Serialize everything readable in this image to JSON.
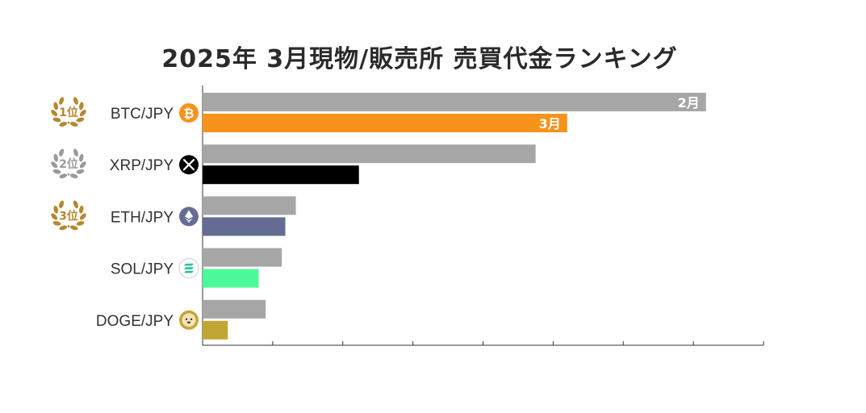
{
  "title": "2025年 3月現物/販売所 売買代金ランキング",
  "chart_data": {
    "type": "bar",
    "orientation": "horizontal",
    "title": "2025年 3月現物/販売所 売買代金ランキング",
    "categories": [
      "BTC/JPY",
      "XRP/JPY",
      "ETH/JPY",
      "SOL/JPY",
      "DOGE/JPY"
    ],
    "series": [
      {
        "name": "2月",
        "values": [
          7.18,
          4.75,
          1.33,
          1.13,
          0.9
        ]
      },
      {
        "name": "3月",
        "values": [
          5.2,
          2.23,
          1.18,
          0.8,
          0.36
        ]
      }
    ],
    "xlim": [
      0,
      8
    ],
    "xticks": 8,
    "ranks": [
      "1位",
      "2位",
      "3位"
    ],
    "rank_colors": [
      "#b8862f",
      "#9a9a9a",
      "#b8862f"
    ],
    "colors": {
      "feb": "#a6a6a6",
      "mar": [
        "#f7931a",
        "#000000",
        "#646c94",
        "#4cf99a",
        "#c2a633"
      ]
    },
    "icons": [
      "bitcoin-icon",
      "xrp-icon",
      "ethereum-icon",
      "solana-icon",
      "dogecoin-icon"
    ]
  }
}
